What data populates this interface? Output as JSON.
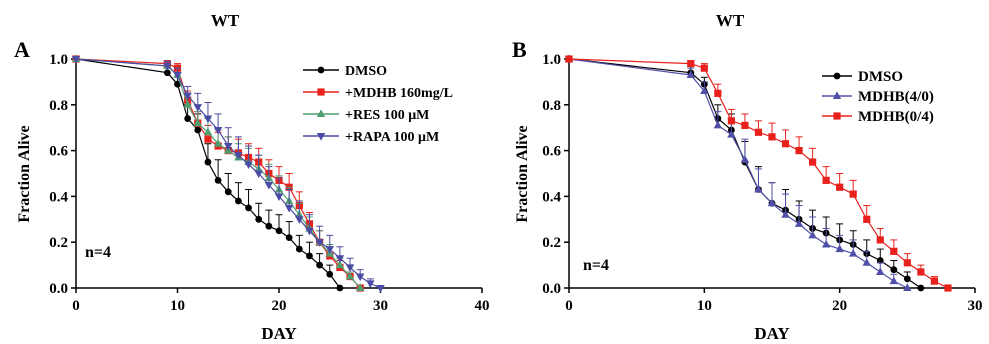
{
  "chart_data": [
    {
      "type": "line",
      "panel_label": "A",
      "title": "WT",
      "xlabel": "DAY",
      "ylabel": "Fraction Alive",
      "annotation": "n=4",
      "xlim": [
        0,
        40
      ],
      "ylim": [
        0,
        1.0
      ],
      "xticks": [
        "0",
        "10",
        "20",
        "30",
        "40"
      ],
      "yticks": [
        "0.0",
        "0.2",
        "0.4",
        "0.6",
        "0.8",
        "1.0"
      ],
      "legend_position": "top-right",
      "series": [
        {
          "name": "DMSO",
          "color": "#000000",
          "marker": "circle",
          "x": [
            0,
            9,
            10,
            11,
            12,
            13,
            14,
            15,
            16,
            17,
            18,
            19,
            20,
            21,
            22,
            23,
            24,
            25,
            26
          ],
          "y": [
            1.0,
            0.94,
            0.89,
            0.74,
            0.69,
            0.55,
            0.47,
            0.42,
            0.38,
            0.35,
            0.3,
            0.27,
            0.25,
            0.22,
            0.17,
            0.14,
            0.1,
            0.06,
            0.0
          ],
          "err": [
            0,
            0.03,
            0.03,
            0.06,
            0.07,
            0.08,
            0.09,
            0.08,
            0.08,
            0.08,
            0.07,
            0.07,
            0.07,
            0.07,
            0.06,
            0.06,
            0.05,
            0.04,
            0
          ]
        },
        {
          "name": "+MDHB 160mg/L",
          "color": "#e8211d",
          "marker": "square",
          "x": [
            0,
            9,
            10,
            11,
            12,
            13,
            14,
            15,
            16,
            17,
            18,
            19,
            20,
            21,
            22,
            23,
            24,
            25,
            26,
            27,
            28
          ],
          "y": [
            1.0,
            0.98,
            0.96,
            0.82,
            0.72,
            0.65,
            0.62,
            0.6,
            0.59,
            0.57,
            0.55,
            0.5,
            0.47,
            0.44,
            0.36,
            0.28,
            0.2,
            0.14,
            0.09,
            0.05,
            0.0
          ],
          "err": [
            0,
            0.01,
            0.02,
            0.04,
            0.05,
            0.06,
            0.06,
            0.06,
            0.06,
            0.06,
            0.06,
            0.06,
            0.06,
            0.06,
            0.06,
            0.05,
            0.05,
            0.04,
            0.03,
            0.02,
            0
          ]
        },
        {
          "name": "+RES 100 μM",
          "color": "#4f9e72",
          "marker": "triangle-up",
          "x": [
            0,
            9,
            10,
            11,
            12,
            13,
            14,
            15,
            16,
            17,
            18,
            19,
            20,
            21,
            22,
            23,
            24,
            25,
            26,
            27,
            28
          ],
          "y": [
            1.0,
            0.97,
            0.93,
            0.8,
            0.72,
            0.68,
            0.63,
            0.6,
            0.57,
            0.55,
            0.52,
            0.48,
            0.43,
            0.38,
            0.32,
            0.26,
            0.2,
            0.15,
            0.1,
            0.05,
            0.0
          ],
          "err": [
            0,
            0.02,
            0.03,
            0.05,
            0.05,
            0.06,
            0.06,
            0.06,
            0.06,
            0.06,
            0.06,
            0.06,
            0.06,
            0.06,
            0.05,
            0.05,
            0.05,
            0.04,
            0.03,
            0.02,
            0
          ]
        },
        {
          "name": "+RAPA 100 μM",
          "color": "#4b4ba5",
          "marker": "triangle-down",
          "x": [
            0,
            9,
            10,
            11,
            12,
            13,
            14,
            15,
            16,
            17,
            18,
            19,
            20,
            21,
            22,
            23,
            24,
            25,
            26,
            27,
            28,
            29,
            30
          ],
          "y": [
            1.0,
            0.97,
            0.93,
            0.84,
            0.79,
            0.74,
            0.69,
            0.62,
            0.58,
            0.54,
            0.5,
            0.45,
            0.4,
            0.35,
            0.3,
            0.25,
            0.2,
            0.17,
            0.13,
            0.09,
            0.05,
            0.02,
            0.0
          ],
          "err": [
            0,
            0.02,
            0.03,
            0.04,
            0.06,
            0.07,
            0.07,
            0.08,
            0.08,
            0.08,
            0.08,
            0.08,
            0.08,
            0.08,
            0.08,
            0.07,
            0.07,
            0.06,
            0.05,
            0.04,
            0.03,
            0.02,
            0
          ]
        }
      ]
    },
    {
      "type": "line",
      "panel_label": "B",
      "title": "WT",
      "xlabel": "DAY",
      "ylabel": "Fraction Alive",
      "annotation": "n=4",
      "xlim": [
        0,
        30
      ],
      "ylim": [
        0,
        1.0
      ],
      "xticks": [
        "0",
        "10",
        "20",
        "30"
      ],
      "yticks": [
        "0.0",
        "0.2",
        "0.4",
        "0.6",
        "0.8",
        "1.0"
      ],
      "legend_position": "top-right",
      "series": [
        {
          "name": "DMSO",
          "color": "#000000",
          "marker": "circle",
          "x": [
            0,
            9,
            10,
            11,
            12,
            13,
            14,
            15,
            16,
            17,
            18,
            19,
            20,
            21,
            22,
            23,
            24,
            25,
            26
          ],
          "y": [
            1.0,
            0.94,
            0.89,
            0.74,
            0.69,
            0.55,
            0.43,
            0.37,
            0.34,
            0.3,
            0.26,
            0.24,
            0.21,
            0.19,
            0.15,
            0.12,
            0.08,
            0.04,
            0.0
          ],
          "err": [
            0,
            0.03,
            0.03,
            0.06,
            0.07,
            0.09,
            0.1,
            0.09,
            0.09,
            0.08,
            0.08,
            0.07,
            0.07,
            0.06,
            0.06,
            0.05,
            0.04,
            0.03,
            0
          ]
        },
        {
          "name": "MDHB(4/0)",
          "color": "#5050a8",
          "marker": "triangle-up",
          "x": [
            0,
            9,
            10,
            11,
            12,
            13,
            14,
            15,
            16,
            17,
            18,
            19,
            20,
            21,
            22,
            23,
            24,
            25
          ],
          "y": [
            1.0,
            0.93,
            0.86,
            0.71,
            0.67,
            0.56,
            0.43,
            0.37,
            0.32,
            0.28,
            0.23,
            0.19,
            0.17,
            0.15,
            0.11,
            0.07,
            0.03,
            0.0
          ],
          "err": [
            0,
            0.03,
            0.04,
            0.06,
            0.07,
            0.09,
            0.09,
            0.09,
            0.09,
            0.08,
            0.08,
            0.07,
            0.06,
            0.06,
            0.05,
            0.04,
            0.03,
            0
          ]
        },
        {
          "name": "MDHB(0/4)",
          "color": "#e8211d",
          "marker": "square",
          "x": [
            0,
            9,
            10,
            11,
            12,
            13,
            14,
            15,
            16,
            17,
            18,
            19,
            20,
            21,
            22,
            23,
            24,
            25,
            26,
            27,
            28
          ],
          "y": [
            1.0,
            0.98,
            0.96,
            0.85,
            0.73,
            0.71,
            0.68,
            0.66,
            0.63,
            0.6,
            0.55,
            0.47,
            0.44,
            0.41,
            0.3,
            0.21,
            0.16,
            0.11,
            0.07,
            0.03,
            0.0
          ],
          "err": [
            0,
            0.01,
            0.02,
            0.04,
            0.05,
            0.05,
            0.05,
            0.06,
            0.06,
            0.06,
            0.06,
            0.06,
            0.06,
            0.06,
            0.06,
            0.05,
            0.05,
            0.04,
            0.03,
            0.02,
            0
          ]
        }
      ]
    }
  ]
}
